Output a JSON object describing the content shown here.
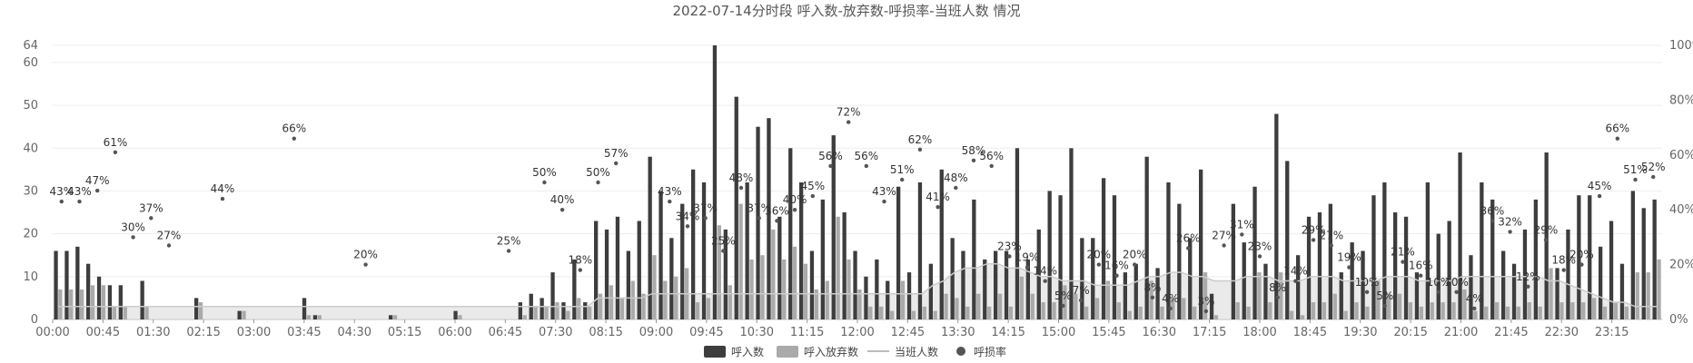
{
  "chart_data": {
    "type": "bar",
    "title": "2022-07-14分时段 呼入数-放弃数-呼损率-当班人数 情况",
    "y_left": {
      "ticks": [
        0,
        10,
        20,
        30,
        40,
        50,
        60,
        64
      ],
      "labels": [
        "0",
        "10",
        "20",
        "30",
        "40",
        "50",
        "60",
        "64"
      ],
      "ylim": [
        0,
        64
      ]
    },
    "y_right": {
      "ticks": [
        0,
        20,
        40,
        60,
        80,
        100
      ],
      "labels": [
        "0%",
        "20%",
        "40%",
        "60%",
        "80%",
        "100%"
      ],
      "ylim": [
        0,
        100
      ]
    },
    "x_tick_labels": [
      "00:00",
      "00:45",
      "01:30",
      "02:15",
      "03:00",
      "03:45",
      "04:30",
      "05:15",
      "06:00",
      "06:45",
      "07:30",
      "08:15",
      "09:00",
      "09:45",
      "10:30",
      "11:15",
      "12:00",
      "12:45",
      "13:30",
      "14:15",
      "15:00",
      "15:45",
      "16:30",
      "17:15",
      "18:00",
      "18:45",
      "19:30",
      "20:15",
      "21:00",
      "21:45",
      "22:30",
      "23:15"
    ],
    "legend": {
      "position": "bottom",
      "items": [
        "呼入数",
        "呼入放弃数",
        "当班人数",
        "呼损率"
      ]
    },
    "colors": {
      "calls": "#3d3d3d",
      "abandoned": "#aaaaaa",
      "staff_line": "#cccccc",
      "staff_area": "#dcdcdc",
      "rate_dot": "#555555"
    },
    "series": [
      {
        "name": "呼入数",
        "values": [
          16,
          16,
          17,
          13,
          10,
          8,
          8,
          0,
          9,
          0,
          0,
          0,
          0,
          5,
          0,
          0,
          0,
          2,
          0,
          0,
          0,
          0,
          0,
          5,
          1,
          0,
          0,
          0,
          0,
          0,
          0,
          1,
          0,
          0,
          0,
          0,
          0,
          2,
          0,
          0,
          0,
          0,
          0,
          4,
          6,
          5,
          11,
          4,
          14,
          4,
          23,
          21,
          24,
          16,
          23,
          38,
          30,
          19,
          27,
          35,
          32,
          64,
          21,
          52,
          32,
          45,
          47,
          24,
          40,
          32,
          16,
          28,
          43,
          25,
          16,
          10,
          14,
          9,
          31,
          11,
          32,
          13,
          35,
          19,
          16,
          28,
          14,
          16,
          16,
          40,
          14,
          21,
          30,
          29,
          40,
          19,
          19,
          33,
          29,
          11,
          13,
          38,
          12,
          32,
          27,
          19,
          35,
          6,
          0,
          27,
          18,
          31,
          13,
          48,
          37,
          15,
          24,
          25,
          27,
          11,
          18,
          16,
          29,
          32,
          25,
          24,
          11,
          32,
          20,
          23,
          39,
          15,
          32,
          28,
          16,
          13,
          21,
          28,
          39,
          12,
          21,
          29,
          29,
          17,
          23,
          13,
          30,
          26,
          28
        ],
        "note": "per-half-hour style slots (approximate reading)"
      },
      {
        "name": "呼入放弃数",
        "values": [
          7,
          7,
          7,
          8,
          8,
          3,
          3,
          0,
          3,
          0,
          0,
          0,
          0,
          4,
          0,
          0,
          0,
          2,
          0,
          0,
          0,
          0,
          0,
          1,
          1,
          0,
          0,
          0,
          0,
          0,
          0,
          1,
          0,
          0,
          0,
          0,
          0,
          1,
          0,
          0,
          0,
          0,
          0,
          1,
          3,
          3,
          4,
          2,
          5,
          3,
          6,
          8,
          5,
          9,
          6,
          15,
          9,
          10,
          12,
          4,
          5,
          22,
          8,
          27,
          14,
          15,
          21,
          14,
          17,
          13,
          7,
          9,
          24,
          14,
          7,
          3,
          3,
          2,
          9,
          2,
          3,
          2,
          6,
          5,
          3,
          6,
          3,
          6,
          3,
          10,
          6,
          4,
          4,
          8,
          6,
          3,
          5,
          9,
          4,
          2,
          3,
          9,
          3,
          5,
          5,
          3,
          11,
          1,
          0,
          4,
          3,
          11,
          4,
          11,
          2,
          1,
          4,
          4,
          6,
          2,
          4,
          3,
          9,
          6,
          6,
          4,
          3,
          4,
          4,
          4,
          7,
          2,
          3,
          4,
          3,
          3,
          4,
          3,
          12,
          4,
          4,
          4,
          5,
          3,
          4,
          3,
          11,
          11,
          14
        ]
      },
      {
        "name": "当班人数",
        "values": [
          3,
          3,
          3,
          3,
          3,
          3,
          3,
          3,
          3,
          3,
          3,
          3,
          3,
          3,
          3,
          3,
          3,
          3,
          3,
          3,
          3,
          3,
          3,
          3,
          3,
          3,
          3,
          3,
          3,
          3,
          3,
          3,
          3,
          3,
          3,
          3,
          3,
          3,
          3,
          3,
          3,
          3,
          3,
          3,
          3,
          3,
          3,
          3,
          3,
          3,
          5,
          5,
          5,
          5,
          5,
          6,
          6,
          6,
          6,
          6,
          6,
          6,
          6,
          6,
          6,
          6,
          6,
          6,
          6,
          6,
          6,
          6,
          6,
          6,
          6,
          6,
          6,
          6,
          6,
          6,
          6,
          8,
          9,
          11,
          12,
          12,
          13,
          13,
          12,
          12,
          11,
          10,
          10,
          9,
          9,
          9,
          8,
          8,
          8,
          8,
          9,
          10,
          10,
          11,
          11,
          10,
          10,
          9,
          9,
          9,
          10,
          10,
          10,
          9,
          9,
          9,
          10,
          10,
          10,
          9,
          9,
          9,
          9,
          10,
          10,
          10,
          9,
          9,
          9,
          9,
          10,
          10,
          10,
          10,
          10,
          10,
          10,
          10,
          9,
          9,
          8,
          7,
          6,
          5,
          4,
          4,
          3,
          3,
          3
        ]
      },
      {
        "name": "呼损率",
        "points": [
          {
            "i": 0,
            "v": 43,
            "label": "43%"
          },
          {
            "i": 1,
            "v": 43,
            "label": "43%"
          },
          {
            "i": 2,
            "v": 47,
            "label": "47%"
          },
          {
            "i": 3,
            "v": 61,
            "label": "61%"
          },
          {
            "i": 4,
            "v": 30,
            "label": "30%"
          },
          {
            "i": 5,
            "v": 37,
            "label": "37%"
          },
          {
            "i": 6,
            "v": 27,
            "label": "27%"
          },
          {
            "i": 9,
            "v": 44,
            "label": "44%"
          },
          {
            "i": 13,
            "v": 66,
            "label": "66%"
          },
          {
            "i": 17,
            "v": 20,
            "label": "20%"
          },
          {
            "i": 25,
            "v": 25,
            "label": "25%"
          },
          {
            "i": 27,
            "v": 50,
            "label": "50%"
          },
          {
            "i": 28,
            "v": 40,
            "label": "40%"
          },
          {
            "i": 29,
            "v": 18,
            "label": "18%"
          },
          {
            "i": 30,
            "v": 50,
            "label": "50%"
          },
          {
            "i": 31,
            "v": 57,
            "label": "57%"
          },
          {
            "i": 34,
            "v": 43,
            "label": "43%"
          },
          {
            "i": 35,
            "v": 34,
            "label": "34%"
          },
          {
            "i": 36,
            "v": 37,
            "label": "37%"
          },
          {
            "i": 37,
            "v": 25,
            "label": "25%"
          },
          {
            "i": 38,
            "v": 48,
            "label": "48%"
          },
          {
            "i": 39,
            "v": 37,
            "label": "37%"
          },
          {
            "i": 40,
            "v": 36,
            "label": "36%"
          },
          {
            "i": 41,
            "v": 40,
            "label": "40%"
          },
          {
            "i": 42,
            "v": 45,
            "label": "45%"
          },
          {
            "i": 43,
            "v": 56,
            "label": "56%"
          },
          {
            "i": 44,
            "v": 72,
            "label": "72%"
          },
          {
            "i": 45,
            "v": 56,
            "label": "56%"
          },
          {
            "i": 46,
            "v": 43,
            "label": "43%"
          },
          {
            "i": 47,
            "v": 51,
            "label": "51%"
          },
          {
            "i": 48,
            "v": 62,
            "label": "62%"
          },
          {
            "i": 49,
            "v": 41,
            "label": "41%"
          },
          {
            "i": 50,
            "v": 48,
            "label": "48%"
          },
          {
            "i": 51,
            "v": 58,
            "label": "58%"
          },
          {
            "i": 52,
            "v": 56,
            "label": "56%"
          },
          {
            "i": 53,
            "v": 23,
            "label": "23%"
          },
          {
            "i": 54,
            "v": 19,
            "label": "19%"
          },
          {
            "i": 55,
            "v": 14,
            "label": "14%"
          },
          {
            "i": 56,
            "v": 5,
            "label": "5%"
          },
          {
            "i": 57,
            "v": 7,
            "label": "7%"
          },
          {
            "i": 58,
            "v": 20,
            "label": "20%"
          },
          {
            "i": 59,
            "v": 16,
            "label": "16%"
          },
          {
            "i": 60,
            "v": 20,
            "label": "20%"
          },
          {
            "i": 61,
            "v": 8,
            "label": "8%"
          },
          {
            "i": 62,
            "v": 4,
            "label": "4%"
          },
          {
            "i": 63,
            "v": 26,
            "label": "26%"
          },
          {
            "i": 64,
            "v": 3,
            "label": "3%"
          },
          {
            "i": 65,
            "v": 27,
            "label": "27%"
          },
          {
            "i": 66,
            "v": 31,
            "label": "31%"
          },
          {
            "i": 67,
            "v": 23,
            "label": "23%"
          },
          {
            "i": 68,
            "v": 8,
            "label": "8%"
          },
          {
            "i": 69,
            "v": 14,
            "label": "14%"
          },
          {
            "i": 70,
            "v": 29,
            "label": "29%"
          },
          {
            "i": 71,
            "v": 27,
            "label": "27%"
          },
          {
            "i": 72,
            "v": 19,
            "label": "19%"
          },
          {
            "i": 73,
            "v": 10,
            "label": "10%"
          },
          {
            "i": 74,
            "v": 5,
            "label": "5%"
          },
          {
            "i": 75,
            "v": 21,
            "label": "21%"
          },
          {
            "i": 76,
            "v": 16,
            "label": "16%"
          },
          {
            "i": 77,
            "v": 10,
            "label": "10%"
          },
          {
            "i": 78,
            "v": 10,
            "label": "10%"
          },
          {
            "i": 79,
            "v": 4,
            "label": "4%"
          },
          {
            "i": 80,
            "v": 36,
            "label": "36%"
          },
          {
            "i": 81,
            "v": 32,
            "label": "32%"
          },
          {
            "i": 82,
            "v": 12,
            "label": "12%"
          },
          {
            "i": 83,
            "v": 29,
            "label": "29%"
          },
          {
            "i": 84,
            "v": 18,
            "label": "18%"
          },
          {
            "i": 85,
            "v": 20,
            "label": "20%"
          },
          {
            "i": 86,
            "v": 45,
            "label": "45%"
          },
          {
            "i": 87,
            "v": 66,
            "label": "66%"
          },
          {
            "i": 88,
            "v": 51,
            "label": "51%"
          },
          {
            "i": 89,
            "v": 52,
            "label": "52%"
          }
        ]
      }
    ]
  }
}
